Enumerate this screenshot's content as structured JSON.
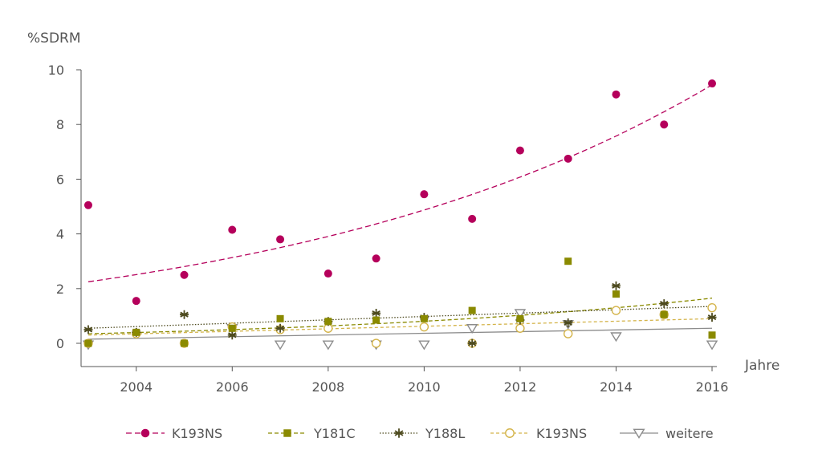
{
  "chart_data": {
    "type": "scatter",
    "ylabel": "%SDRM",
    "xlabel": "Jahre",
    "xlim": [
      2002.85,
      2016.1
    ],
    "ylim": [
      -0.85,
      10
    ],
    "yticks": [
      0,
      2,
      4,
      6,
      8,
      10
    ],
    "xticks": [
      2004,
      2006,
      2008,
      2010,
      2012,
      2014,
      2016
    ],
    "grid": false,
    "legend_position": "bottom",
    "series": [
      {
        "name": "K193NS",
        "color": "#b5005b",
        "marker": "filled-circle",
        "trend": "exponential",
        "points": [
          [
            2003,
            5.05
          ],
          [
            2004,
            1.55
          ],
          [
            2005,
            2.5
          ],
          [
            2006,
            4.15
          ],
          [
            2007,
            3.8
          ],
          [
            2008,
            2.55
          ],
          [
            2009,
            3.1
          ],
          [
            2010,
            5.45
          ],
          [
            2011,
            4.55
          ],
          [
            2012,
            7.05
          ],
          [
            2013,
            6.75
          ],
          [
            2014,
            9.1
          ],
          [
            2015,
            8.0
          ],
          [
            2016,
            9.5
          ]
        ],
        "trendline": [
          [
            2003,
            2.25
          ],
          [
            2016,
            9.45
          ]
        ]
      },
      {
        "name": "Y181C",
        "color": "#8a8a00",
        "marker": "filled-square",
        "trend": "exponential",
        "points": [
          [
            2003,
            0.0
          ],
          [
            2004,
            0.4
          ],
          [
            2005,
            0.0
          ],
          [
            2006,
            0.55
          ],
          [
            2007,
            0.9
          ],
          [
            2008,
            0.8
          ],
          [
            2009,
            0.85
          ],
          [
            2010,
            0.9
          ],
          [
            2011,
            1.2
          ],
          [
            2012,
            0.9
          ],
          [
            2013,
            3.0
          ],
          [
            2014,
            1.8
          ],
          [
            2015,
            1.05
          ],
          [
            2016,
            0.3
          ]
        ],
        "trendline": [
          [
            2003,
            0.35
          ],
          [
            2016,
            1.65
          ]
        ]
      },
      {
        "name": "Y188L",
        "color": "#4d4a1e",
        "marker": "asterisk",
        "trend": "linear",
        "points": [
          [
            2003,
            0.5
          ],
          [
            2004,
            0.4
          ],
          [
            2005,
            1.05
          ],
          [
            2006,
            0.3
          ],
          [
            2007,
            0.55
          ],
          [
            2008,
            0.8
          ],
          [
            2009,
            1.1
          ],
          [
            2010,
            0.95
          ],
          [
            2011,
            0.0
          ],
          [
            2012,
            0.85
          ],
          [
            2013,
            0.75
          ],
          [
            2014,
            2.1
          ],
          [
            2015,
            1.45
          ],
          [
            2016,
            0.95
          ]
        ],
        "trendline": [
          [
            2003,
            0.55
          ],
          [
            2016,
            1.35
          ]
        ]
      },
      {
        "name": "K193NS",
        "color": "#d4b44a",
        "marker": "open-circle",
        "trend": "linear",
        "points": [
          [
            2003,
            0.0
          ],
          [
            2004,
            0.35
          ],
          [
            2005,
            0.0
          ],
          [
            2006,
            0.6
          ],
          [
            2007,
            0.5
          ],
          [
            2008,
            0.55
          ],
          [
            2009,
            0.0
          ],
          [
            2010,
            0.6
          ],
          [
            2011,
            0.0
          ],
          [
            2012,
            0.55
          ],
          [
            2013,
            0.35
          ],
          [
            2014,
            1.2
          ],
          [
            2015,
            1.05
          ],
          [
            2016,
            1.3
          ]
        ],
        "trendline": [
          [
            2003,
            0.3
          ],
          [
            2016,
            0.9
          ]
        ]
      },
      {
        "name": "weitere",
        "color": "#8c8c8c",
        "marker": "open-triangle-down",
        "trend": "linear",
        "points": [
          [
            2003,
            -0.05
          ],
          [
            2006,
            0.55
          ],
          [
            2007,
            -0.05
          ],
          [
            2008,
            -0.05
          ],
          [
            2009,
            -0.05
          ],
          [
            2010,
            -0.05
          ],
          [
            2011,
            0.55
          ],
          [
            2012,
            1.1
          ],
          [
            2013,
            0.7
          ],
          [
            2014,
            0.25
          ],
          [
            2016,
            -0.05
          ]
        ],
        "trendline": [
          [
            2003,
            0.15
          ],
          [
            2016,
            0.55
          ]
        ]
      }
    ]
  }
}
